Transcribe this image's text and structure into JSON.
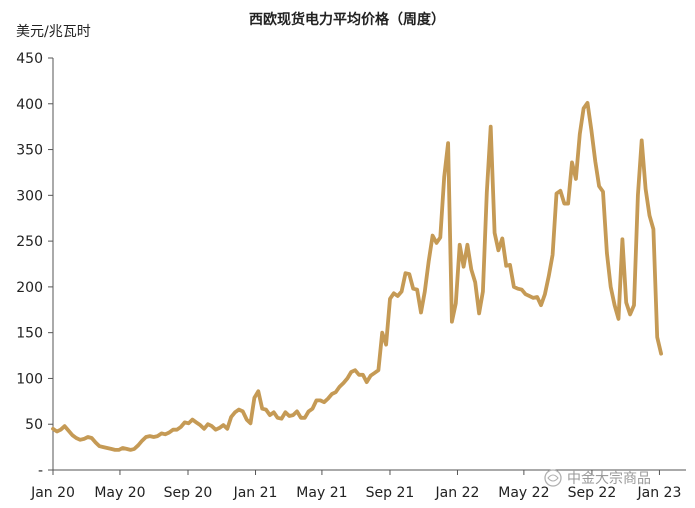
{
  "chart_data": {
    "type": "line",
    "title": "西欧现货电力平均价格（周度）",
    "ylabel": "美元/兆瓦时",
    "xlabel": "",
    "ylim": [
      0,
      450
    ],
    "yticks": [
      {
        "value": 0,
        "label": "-"
      },
      {
        "value": 50,
        "label": "50"
      },
      {
        "value": 100,
        "label": "100"
      },
      {
        "value": 150,
        "label": "150"
      },
      {
        "value": 200,
        "label": "200"
      },
      {
        "value": 250,
        "label": "250"
      },
      {
        "value": 300,
        "label": "300"
      },
      {
        "value": 350,
        "label": "350"
      },
      {
        "value": 400,
        "label": "400"
      },
      {
        "value": 450,
        "label": "450"
      }
    ],
    "xticks": [
      {
        "value": "2020-01",
        "label": "Jan 20"
      },
      {
        "value": "2020-05",
        "label": "May 20"
      },
      {
        "value": "2020-09",
        "label": "Sep 20"
      },
      {
        "value": "2021-01",
        "label": "Jan 21"
      },
      {
        "value": "2021-05",
        "label": "May 21"
      },
      {
        "value": "2021-09",
        "label": "Sep 21"
      },
      {
        "value": "2022-01",
        "label": "Jan 22"
      },
      {
        "value": "2022-05",
        "label": "May 22"
      },
      {
        "value": "2022-09",
        "label": "Sep 22"
      },
      {
        "value": "2023-01",
        "label": "Jan 23"
      }
    ],
    "grid": false,
    "line_color": "#c59a55",
    "series": [
      {
        "values": [
          [
            "2020-01-01",
            45
          ],
          [
            "2020-01-08",
            42
          ],
          [
            "2020-01-15",
            44
          ],
          [
            "2020-01-22",
            48
          ],
          [
            "2020-01-29",
            43
          ],
          [
            "2020-02-05",
            38
          ],
          [
            "2020-02-12",
            35
          ],
          [
            "2020-02-19",
            33
          ],
          [
            "2020-02-26",
            34
          ],
          [
            "2020-03-04",
            36
          ],
          [
            "2020-03-11",
            35
          ],
          [
            "2020-03-18",
            30
          ],
          [
            "2020-03-25",
            26
          ],
          [
            "2020-04-01",
            25
          ],
          [
            "2020-04-08",
            24
          ],
          [
            "2020-04-15",
            23
          ],
          [
            "2020-04-22",
            22
          ],
          [
            "2020-04-29",
            22
          ],
          [
            "2020-05-06",
            24
          ],
          [
            "2020-05-13",
            23
          ],
          [
            "2020-05-20",
            22
          ],
          [
            "2020-05-27",
            23
          ],
          [
            "2020-06-03",
            27
          ],
          [
            "2020-06-10",
            32
          ],
          [
            "2020-06-17",
            36
          ],
          [
            "2020-06-24",
            37
          ],
          [
            "2020-07-01",
            36
          ],
          [
            "2020-07-08",
            37
          ],
          [
            "2020-07-15",
            40
          ],
          [
            "2020-07-22",
            39
          ],
          [
            "2020-07-29",
            41
          ],
          [
            "2020-08-05",
            44
          ],
          [
            "2020-08-12",
            44
          ],
          [
            "2020-08-19",
            47
          ],
          [
            "2020-08-26",
            52
          ],
          [
            "2020-09-02",
            51
          ],
          [
            "2020-09-09",
            55
          ],
          [
            "2020-09-16",
            52
          ],
          [
            "2020-09-23",
            49
          ],
          [
            "2020-09-30",
            45
          ],
          [
            "2020-10-07",
            50
          ],
          [
            "2020-10-14",
            48
          ],
          [
            "2020-10-21",
            44
          ],
          [
            "2020-10-28",
            46
          ],
          [
            "2020-11-04",
            49
          ],
          [
            "2020-11-11",
            45
          ],
          [
            "2020-11-18",
            58
          ],
          [
            "2020-11-25",
            63
          ],
          [
            "2020-12-02",
            66
          ],
          [
            "2020-12-09",
            64
          ],
          [
            "2020-12-16",
            55
          ],
          [
            "2020-12-23",
            51
          ],
          [
            "2020-12-30",
            79
          ],
          [
            "2021-01-06",
            86
          ],
          [
            "2021-01-13",
            67
          ],
          [
            "2021-01-20",
            66
          ],
          [
            "2021-01-27",
            60
          ],
          [
            "2021-02-03",
            63
          ],
          [
            "2021-02-10",
            57
          ],
          [
            "2021-02-17",
            56
          ],
          [
            "2021-02-24",
            63
          ],
          [
            "2021-03-03",
            59
          ],
          [
            "2021-03-10",
            60
          ],
          [
            "2021-03-17",
            64
          ],
          [
            "2021-03-24",
            57
          ],
          [
            "2021-03-31",
            57
          ],
          [
            "2021-04-07",
            64
          ],
          [
            "2021-04-14",
            67
          ],
          [
            "2021-04-21",
            76
          ],
          [
            "2021-04-28",
            76
          ],
          [
            "2021-05-05",
            74
          ],
          [
            "2021-05-12",
            78
          ],
          [
            "2021-05-19",
            83
          ],
          [
            "2021-05-26",
            85
          ],
          [
            "2021-06-02",
            91
          ],
          [
            "2021-06-09",
            95
          ],
          [
            "2021-06-16",
            100
          ],
          [
            "2021-06-23",
            107
          ],
          [
            "2021-06-30",
            109
          ],
          [
            "2021-07-07",
            104
          ],
          [
            "2021-07-14",
            104
          ],
          [
            "2021-07-21",
            96
          ],
          [
            "2021-07-28",
            103
          ],
          [
            "2021-08-04",
            106
          ],
          [
            "2021-08-11",
            109
          ],
          [
            "2021-08-18",
            150
          ],
          [
            "2021-08-25",
            137
          ],
          [
            "2021-09-01",
            187
          ],
          [
            "2021-09-08",
            193
          ],
          [
            "2021-09-15",
            190
          ],
          [
            "2021-09-22",
            195
          ],
          [
            "2021-09-29",
            215
          ],
          [
            "2021-10-06",
            214
          ],
          [
            "2021-10-13",
            198
          ],
          [
            "2021-10-20",
            197
          ],
          [
            "2021-10-27",
            172
          ],
          [
            "2021-11-03",
            195
          ],
          [
            "2021-11-10",
            228
          ],
          [
            "2021-11-17",
            256
          ],
          [
            "2021-11-24",
            248
          ],
          [
            "2021-12-01",
            254
          ],
          [
            "2021-12-08",
            320
          ],
          [
            "2021-12-15",
            357
          ],
          [
            "2021-12-22",
            162
          ],
          [
            "2021-12-29",
            182
          ],
          [
            "2022-01-05",
            246
          ],
          [
            "2022-01-12",
            222
          ],
          [
            "2022-01-19",
            246
          ],
          [
            "2022-01-26",
            219
          ],
          [
            "2022-02-02",
            205
          ],
          [
            "2022-02-09",
            171
          ],
          [
            "2022-02-16",
            195
          ],
          [
            "2022-02-23",
            303
          ],
          [
            "2022-03-02",
            375
          ],
          [
            "2022-03-09",
            259
          ],
          [
            "2022-03-16",
            240
          ],
          [
            "2022-03-23",
            253
          ],
          [
            "2022-03-30",
            223
          ],
          [
            "2022-04-06",
            224
          ],
          [
            "2022-04-13",
            200
          ],
          [
            "2022-04-20",
            198
          ],
          [
            "2022-04-27",
            197
          ],
          [
            "2022-05-04",
            192
          ],
          [
            "2022-05-11",
            190
          ],
          [
            "2022-05-18",
            188
          ],
          [
            "2022-05-25",
            189
          ],
          [
            "2022-06-01",
            180
          ],
          [
            "2022-06-08",
            192
          ],
          [
            "2022-06-15",
            212
          ],
          [
            "2022-06-22",
            235
          ],
          [
            "2022-06-29",
            302
          ],
          [
            "2022-07-06",
            305
          ],
          [
            "2022-07-13",
            291
          ],
          [
            "2022-07-20",
            291
          ],
          [
            "2022-07-27",
            336
          ],
          [
            "2022-08-03",
            318
          ],
          [
            "2022-08-10",
            367
          ],
          [
            "2022-08-17",
            395
          ],
          [
            "2022-08-24",
            401
          ],
          [
            "2022-08-31",
            371
          ],
          [
            "2022-09-07",
            337
          ],
          [
            "2022-09-14",
            310
          ],
          [
            "2022-09-21",
            304
          ],
          [
            "2022-09-28",
            237
          ],
          [
            "2022-10-05",
            200
          ],
          [
            "2022-10-12",
            180
          ],
          [
            "2022-10-19",
            165
          ],
          [
            "2022-10-26",
            252
          ],
          [
            "2022-11-02",
            183
          ],
          [
            "2022-11-09",
            170
          ],
          [
            "2022-11-16",
            180
          ],
          [
            "2022-11-23",
            300
          ],
          [
            "2022-11-30",
            360
          ],
          [
            "2022-12-07",
            307
          ],
          [
            "2022-12-14",
            278
          ],
          [
            "2022-12-21",
            263
          ],
          [
            "2022-12-28",
            145
          ],
          [
            "2023-01-04",
            127
          ]
        ]
      }
    ]
  },
  "watermark": {
    "text": "中金大宗商品"
  }
}
